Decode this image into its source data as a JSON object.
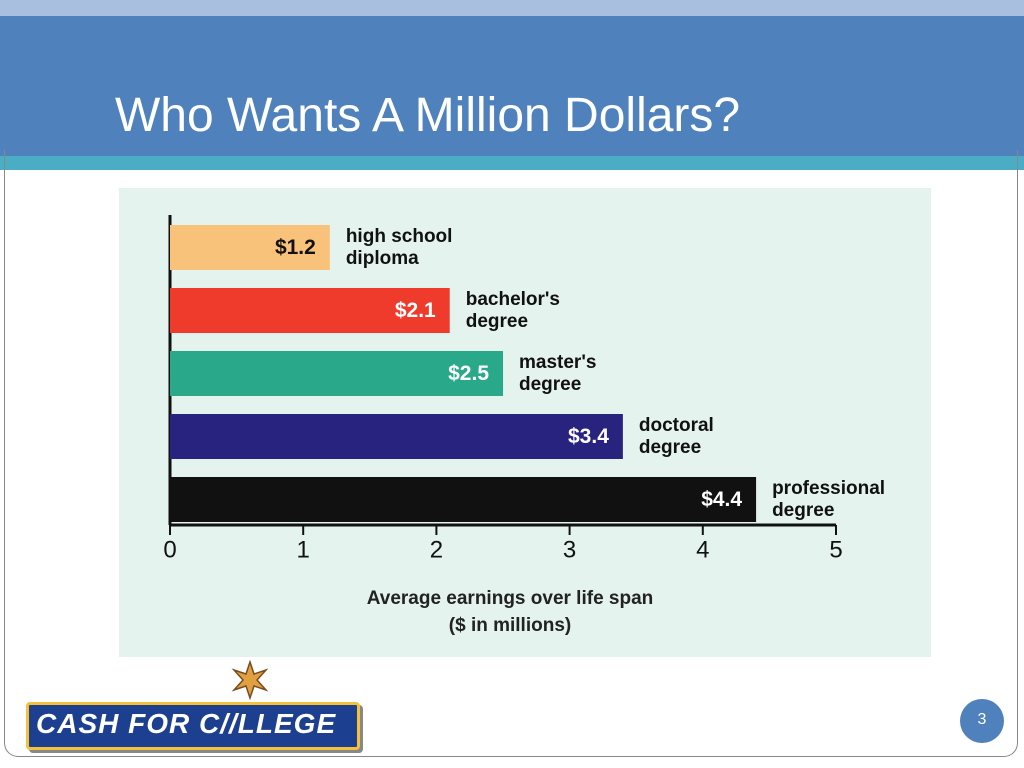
{
  "slide": {
    "title": "Who Wants A Million Dollars?",
    "logo": "CASH FOR C//LLEGE",
    "page_number": "3"
  },
  "chart_data": {
    "type": "barh",
    "categories": [
      "high school diploma",
      "bachelor's degree",
      "master's degree",
      "doctoral degree",
      "professional degree"
    ],
    "values": [
      1.2,
      2.1,
      2.5,
      3.4,
      4.4
    ],
    "value_labels": [
      "$1.2",
      "$2.1",
      "$2.5",
      "$3.4",
      "$4.4"
    ],
    "colors": [
      "#f9c27a",
      "#ee3b2b",
      "#2aa98a",
      "#27237f",
      "#111111"
    ],
    "label_colors": [
      "#111111",
      "#ffffff",
      "#ffffff",
      "#ffffff",
      "#ffffff"
    ],
    "xlim": [
      0,
      5
    ],
    "xticks": [
      0,
      1,
      2,
      3,
      4,
      5
    ],
    "xlabel": "Average earnings over life span",
    "xlabel_note": "($ in millions)"
  }
}
